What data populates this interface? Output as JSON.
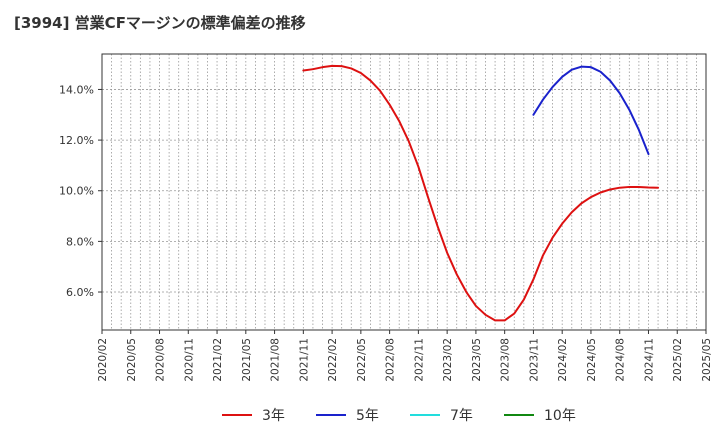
{
  "title": "[3994]  営業CFマージンの標準偏差の推移",
  "chart_data": {
    "type": "line",
    "title": "[3994]  営業CFマージンの標準偏差の推移",
    "xlabel": "",
    "ylabel": "",
    "x_ticks": [
      "2020/02",
      "2020/05",
      "2020/08",
      "2020/11",
      "2021/02",
      "2021/05",
      "2021/08",
      "2021/11",
      "2022/02",
      "2022/05",
      "2022/08",
      "2022/11",
      "2023/02",
      "2023/05",
      "2023/08",
      "2023/11",
      "2024/02",
      "2024/05",
      "2024/08",
      "2024/11",
      "2025/02",
      "2025/05"
    ],
    "y_ticks": [
      "6.0%",
      "8.0%",
      "10.0%",
      "12.0%",
      "14.0%"
    ],
    "ylim": [
      4.5,
      15.4
    ],
    "grid": true,
    "legend_position": "bottom",
    "series": [
      {
        "name": "3年",
        "color": "#dd1111",
        "points": [
          [
            "2021/11",
            14.75
          ],
          [
            "2021/12",
            14.8
          ],
          [
            "2022/01",
            14.88
          ],
          [
            "2022/02",
            14.93
          ],
          [
            "2022/03",
            14.92
          ],
          [
            "2022/04",
            14.83
          ],
          [
            "2022/05",
            14.65
          ],
          [
            "2022/06",
            14.35
          ],
          [
            "2022/07",
            13.95
          ],
          [
            "2022/08",
            13.4
          ],
          [
            "2022/09",
            12.75
          ],
          [
            "2022/10",
            11.95
          ],
          [
            "2022/11",
            10.95
          ],
          [
            "2022/12",
            9.75
          ],
          [
            "2023/01",
            8.6
          ],
          [
            "2023/02",
            7.55
          ],
          [
            "2023/03",
            6.7
          ],
          [
            "2023/04",
            6.0
          ],
          [
            "2023/05",
            5.45
          ],
          [
            "2023/06",
            5.1
          ],
          [
            "2023/07",
            4.88
          ],
          [
            "2023/08",
            4.88
          ],
          [
            "2023/09",
            5.15
          ],
          [
            "2023/10",
            5.7
          ],
          [
            "2023/11",
            6.5
          ],
          [
            "2023/12",
            7.45
          ],
          [
            "2024/01",
            8.15
          ],
          [
            "2024/02",
            8.7
          ],
          [
            "2024/03",
            9.15
          ],
          [
            "2024/04",
            9.5
          ],
          [
            "2024/05",
            9.75
          ],
          [
            "2024/06",
            9.93
          ],
          [
            "2024/07",
            10.05
          ],
          [
            "2024/08",
            10.12
          ],
          [
            "2024/09",
            10.15
          ],
          [
            "2024/10",
            10.15
          ],
          [
            "2024/11",
            10.13
          ],
          [
            "2024/12",
            10.12
          ]
        ]
      },
      {
        "name": "5年",
        "color": "#1a22cc",
        "points": [
          [
            "2023/11",
            13.0
          ],
          [
            "2023/12",
            13.6
          ],
          [
            "2024/01",
            14.1
          ],
          [
            "2024/02",
            14.5
          ],
          [
            "2024/03",
            14.78
          ],
          [
            "2024/04",
            14.9
          ],
          [
            "2024/05",
            14.88
          ],
          [
            "2024/06",
            14.7
          ],
          [
            "2024/07",
            14.35
          ],
          [
            "2024/08",
            13.85
          ],
          [
            "2024/09",
            13.2
          ],
          [
            "2024/10",
            12.4
          ],
          [
            "2024/11",
            11.45
          ]
        ]
      },
      {
        "name": "7年",
        "color": "#22dddd",
        "points": []
      },
      {
        "name": "10年",
        "color": "#118811",
        "points": []
      }
    ]
  }
}
